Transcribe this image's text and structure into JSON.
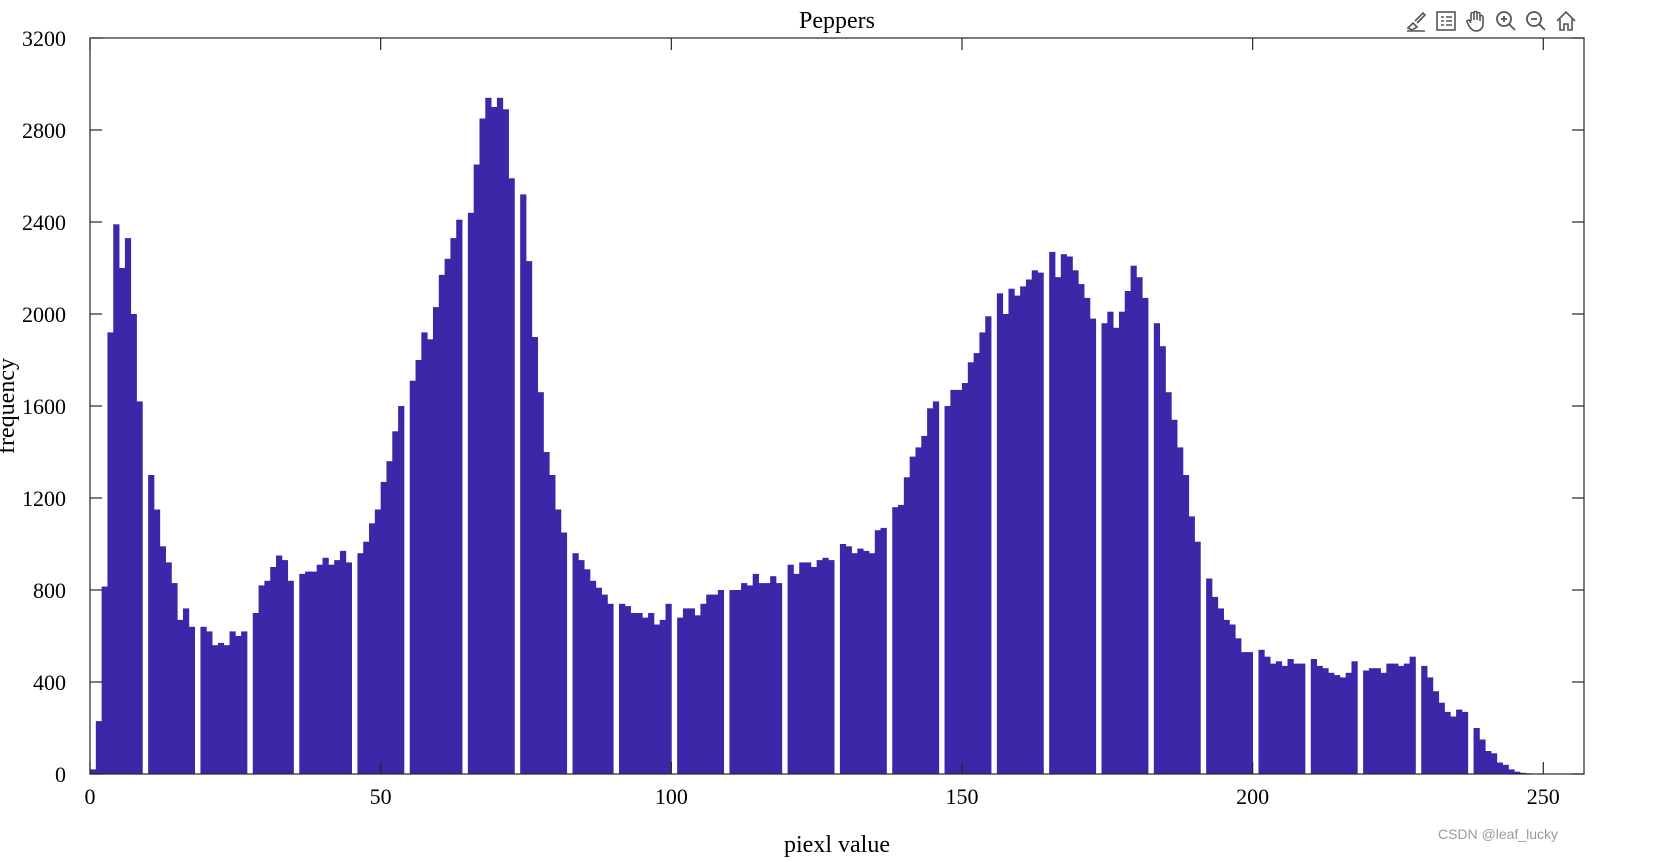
{
  "colors": {
    "bar": "#3d27a8",
    "axis": "#262626"
  },
  "toolbar": {
    "icons": [
      "brush-icon",
      "legend-icon",
      "pan-hand-icon",
      "zoom-in-icon",
      "zoom-out-icon",
      "home-icon"
    ]
  },
  "watermark": "CSDN @leaf_lucky",
  "chart_data": {
    "type": "bar",
    "title": "Peppers",
    "xlabel": "piexl value",
    "ylabel": "frequency",
    "xlim": [
      0,
      257
    ],
    "ylim": [
      0,
      3200
    ],
    "xticks": [
      0,
      50,
      100,
      150,
      200,
      250
    ],
    "yticks": [
      0,
      400,
      800,
      1200,
      1600,
      2000,
      2400,
      2800,
      3200
    ],
    "grid": false,
    "legend": "none",
    "values": [
      20,
      230,
      815,
      1920,
      2390,
      2200,
      2330,
      2000,
      1620,
      0,
      1300,
      1150,
      990,
      920,
      830,
      670,
      720,
      640,
      0,
      640,
      620,
      560,
      570,
      560,
      620,
      600,
      620,
      0,
      700,
      820,
      840,
      900,
      950,
      930,
      840,
      0,
      870,
      880,
      880,
      910,
      940,
      910,
      930,
      970,
      920,
      0,
      960,
      1010,
      1090,
      1150,
      1270,
      1360,
      1490,
      1600,
      0,
      1710,
      1800,
      1920,
      1890,
      2030,
      2170,
      2240,
      2330,
      2410,
      0,
      2440,
      2650,
      2850,
      2940,
      2900,
      2940,
      2890,
      2590,
      0,
      2520,
      2230,
      1900,
      1660,
      1400,
      1300,
      1150,
      1050,
      0,
      960,
      930,
      890,
      840,
      810,
      780,
      740,
      0,
      740,
      730,
      700,
      700,
      680,
      700,
      650,
      670,
      740,
      0,
      680,
      720,
      720,
      690,
      740,
      780,
      780,
      800,
      0,
      800,
      800,
      830,
      820,
      870,
      830,
      830,
      860,
      830,
      0,
      910,
      870,
      920,
      920,
      900,
      930,
      940,
      930,
      0,
      1000,
      990,
      960,
      980,
      970,
      960,
      1060,
      1070,
      0,
      1160,
      1170,
      1290,
      1380,
      1420,
      1470,
      1590,
      1620,
      0,
      1600,
      1670,
      1670,
      1700,
      1790,
      1830,
      1920,
      1990,
      0,
      2090,
      2000,
      2110,
      2080,
      2120,
      2150,
      2190,
      2180,
      0,
      2270,
      2160,
      2260,
      2250,
      2190,
      2130,
      2070,
      1980,
      0,
      1960,
      2010,
      1940,
      2010,
      2100,
      2210,
      2160,
      2070,
      0,
      1960,
      1860,
      1660,
      1540,
      1420,
      1300,
      1120,
      1010,
      0,
      850,
      770,
      720,
      670,
      650,
      590,
      530,
      530,
      0,
      540,
      510,
      480,
      490,
      470,
      500,
      480,
      480,
      0,
      500,
      470,
      460,
      440,
      430,
      420,
      440,
      490,
      0,
      450,
      460,
      460,
      440,
      480,
      480,
      470,
      480,
      510,
      0,
      470,
      420,
      360,
      310,
      270,
      250,
      280,
      270,
      0,
      200,
      150,
      100,
      90,
      50,
      40,
      20,
      10,
      5,
      3,
      2,
      1,
      0,
      0,
      0,
      0,
      0,
      0,
      0,
      0,
      0,
      0,
      0,
      0,
      0,
      0,
      0,
      0,
      0,
      0,
      0,
      0,
      0,
      0,
      0,
      0
    ]
  }
}
